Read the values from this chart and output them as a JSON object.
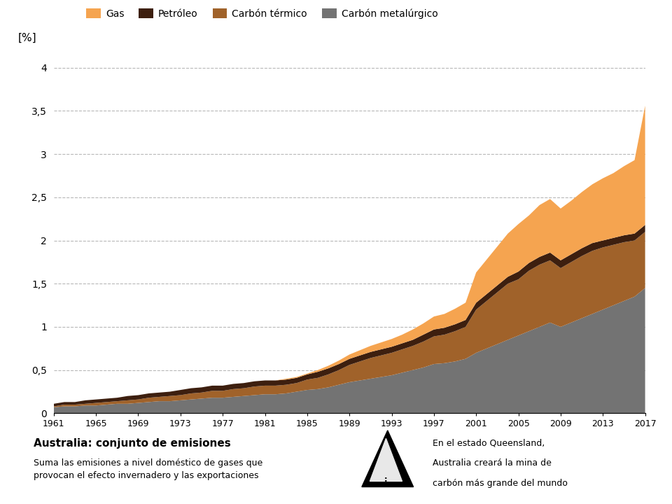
{
  "years": [
    1961,
    1962,
    1963,
    1964,
    1965,
    1966,
    1967,
    1968,
    1969,
    1970,
    1971,
    1972,
    1973,
    1974,
    1975,
    1976,
    1977,
    1978,
    1979,
    1980,
    1981,
    1982,
    1983,
    1984,
    1985,
    1986,
    1987,
    1988,
    1989,
    1990,
    1991,
    1992,
    1993,
    1994,
    1995,
    1996,
    1997,
    1998,
    1999,
    2000,
    2001,
    2002,
    2003,
    2004,
    2005,
    2006,
    2007,
    2008,
    2009,
    2010,
    2011,
    2012,
    2013,
    2014,
    2015,
    2016,
    2017
  ],
  "carbon_metalurgico": [
    0.07,
    0.08,
    0.08,
    0.09,
    0.09,
    0.1,
    0.11,
    0.11,
    0.12,
    0.13,
    0.14,
    0.14,
    0.15,
    0.16,
    0.17,
    0.18,
    0.18,
    0.19,
    0.2,
    0.21,
    0.22,
    0.22,
    0.23,
    0.25,
    0.27,
    0.28,
    0.3,
    0.33,
    0.36,
    0.38,
    0.4,
    0.42,
    0.44,
    0.47,
    0.5,
    0.53,
    0.57,
    0.58,
    0.6,
    0.63,
    0.7,
    0.75,
    0.8,
    0.85,
    0.9,
    0.95,
    1.0,
    1.05,
    1.0,
    1.05,
    1.1,
    1.15,
    1.2,
    1.25,
    1.3,
    1.35,
    1.45
  ],
  "carbon_termico": [
    0.01,
    0.02,
    0.02,
    0.02,
    0.03,
    0.03,
    0.03,
    0.04,
    0.04,
    0.05,
    0.05,
    0.06,
    0.06,
    0.07,
    0.07,
    0.08,
    0.08,
    0.09,
    0.09,
    0.1,
    0.1,
    0.1,
    0.1,
    0.1,
    0.12,
    0.13,
    0.15,
    0.17,
    0.2,
    0.22,
    0.24,
    0.25,
    0.26,
    0.27,
    0.28,
    0.3,
    0.32,
    0.33,
    0.35,
    0.37,
    0.5,
    0.55,
    0.6,
    0.65,
    0.65,
    0.7,
    0.72,
    0.72,
    0.68,
    0.7,
    0.72,
    0.73,
    0.72,
    0.7,
    0.68,
    0.65,
    0.65
  ],
  "petroleo": [
    0.03,
    0.03,
    0.03,
    0.04,
    0.04,
    0.04,
    0.04,
    0.05,
    0.05,
    0.05,
    0.05,
    0.05,
    0.06,
    0.06,
    0.06,
    0.06,
    0.06,
    0.06,
    0.06,
    0.06,
    0.06,
    0.06,
    0.06,
    0.06,
    0.06,
    0.07,
    0.07,
    0.07,
    0.07,
    0.07,
    0.07,
    0.07,
    0.07,
    0.07,
    0.07,
    0.08,
    0.08,
    0.08,
    0.08,
    0.08,
    0.08,
    0.08,
    0.08,
    0.08,
    0.09,
    0.09,
    0.09,
    0.09,
    0.09,
    0.09,
    0.09,
    0.09,
    0.08,
    0.08,
    0.08,
    0.08,
    0.08
  ],
  "gas": [
    0.0,
    0.0,
    0.0,
    0.0,
    0.0,
    0.0,
    0.0,
    0.0,
    0.0,
    0.0,
    0.0,
    0.0,
    0.0,
    0.0,
    0.0,
    0.0,
    0.0,
    0.0,
    0.0,
    0.0,
    0.0,
    0.0,
    0.01,
    0.01,
    0.01,
    0.02,
    0.03,
    0.04,
    0.05,
    0.06,
    0.07,
    0.08,
    0.09,
    0.1,
    0.12,
    0.13,
    0.15,
    0.16,
    0.18,
    0.2,
    0.35,
    0.4,
    0.45,
    0.5,
    0.55,
    0.55,
    0.6,
    0.62,
    0.6,
    0.62,
    0.65,
    0.68,
    0.72,
    0.75,
    0.8,
    0.85,
    1.38
  ],
  "color_gas": "#f5a450",
  "color_petroleo": "#3d1f0f",
  "color_carbon_termico": "#a0622a",
  "color_carbon_metalurgico": "#737373",
  "background_color": "#ffffff",
  "grid_color": "#999999",
  "yticks": [
    0,
    0.5,
    1.0,
    1.5,
    2.0,
    2.5,
    3.0,
    3.5,
    4.0
  ],
  "ytick_labels": [
    "0",
    "0,5",
    "1",
    "1,5",
    "2",
    "2,5",
    "3",
    "3,5",
    "4"
  ],
  "xtick_years": [
    1961,
    1965,
    1969,
    1973,
    1977,
    1981,
    1985,
    1989,
    1993,
    1997,
    2001,
    2005,
    2009,
    2013,
    2017
  ],
  "ylim": [
    0,
    4.2
  ],
  "ylabel": "[%]",
  "legend_labels": [
    "Gas",
    "Petróleo",
    "Carbón térmico",
    "Carbón metalúrgico"
  ],
  "title_bold": "Australia: conjunto de emisiones",
  "subtitle": "Suma las emisiones a nivel doméstico de gases que\nprovocan el efecto invernadero y las exportaciones",
  "box_text_line1": "En el estado Queensland,",
  "box_text_line2": "Australia creará la mina de",
  "box_text_line3": "carbón más grande del mundo"
}
